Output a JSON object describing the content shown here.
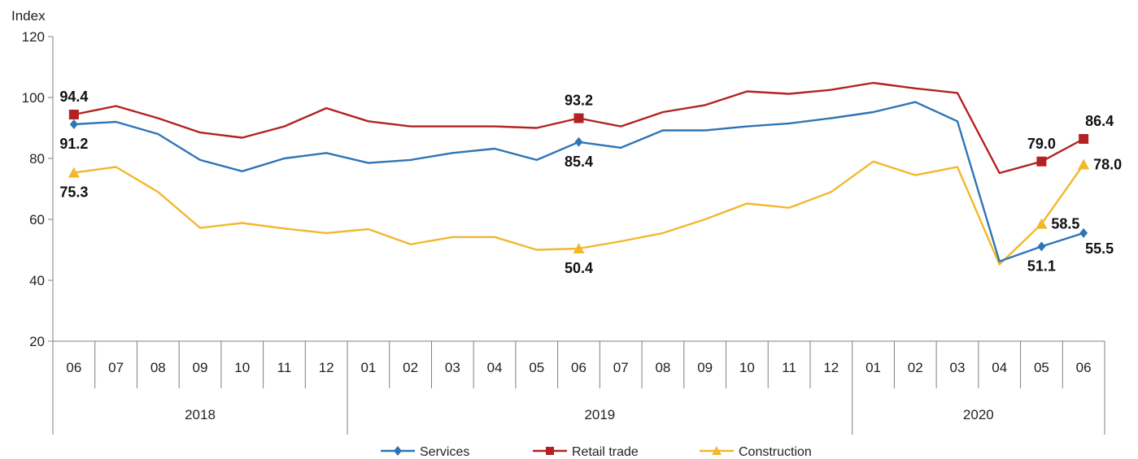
{
  "chart_data": {
    "type": "line",
    "ylabel": "Index",
    "ylim": [
      20,
      120
    ],
    "yticks": [
      "20",
      "40",
      "60",
      "80",
      "100",
      "120"
    ],
    "grid": false,
    "legend_position": "bottom",
    "categories": [
      "06",
      "07",
      "08",
      "09",
      "10",
      "11",
      "12",
      "01",
      "02",
      "03",
      "04",
      "05",
      "06",
      "07",
      "08",
      "09",
      "10",
      "11",
      "12",
      "01",
      "02",
      "03",
      "04",
      "05",
      "06"
    ],
    "year_groups": [
      {
        "label": "2018",
        "start": 0,
        "end": 6
      },
      {
        "label": "2019",
        "start": 7,
        "end": 18
      },
      {
        "label": "2020",
        "start": 19,
        "end": 24
      }
    ],
    "series": [
      {
        "name": "Services",
        "color": "#2E75B6",
        "marker": "diamond",
        "values": [
          91.2,
          92,
          88,
          79.5,
          75.8,
          80,
          81.8,
          78.5,
          79.5,
          81.8,
          83.2,
          79.5,
          85.4,
          83.5,
          89.2,
          89.2,
          90.5,
          91.5,
          93.2,
          95.2,
          98.5,
          92.2,
          46.2,
          51.1,
          55.5
        ],
        "marked_points": [
          0,
          12,
          23,
          24
        ],
        "labels": [
          {
            "index": 0,
            "text": "91.2",
            "pos": "below"
          },
          {
            "index": 12,
            "text": "85.4",
            "pos": "below"
          },
          {
            "index": 23,
            "text": "51.1",
            "pos": "below"
          },
          {
            "index": 24,
            "text": "55.5",
            "pos": "below-right"
          }
        ]
      },
      {
        "name": "Retail trade",
        "color": "#B22222",
        "marker": "square",
        "values": [
          94.4,
          97.2,
          93.2,
          88.5,
          86.8,
          90.5,
          96.5,
          92.2,
          90.5,
          90.5,
          90.5,
          90,
          93.2,
          90.5,
          95.2,
          97.5,
          102,
          101.2,
          102.5,
          104.8,
          103,
          101.5,
          75.2,
          79.0,
          86.4
        ],
        "marked_points": [
          0,
          12,
          23,
          24
        ],
        "labels": [
          {
            "index": 0,
            "text": "94.4",
            "pos": "above"
          },
          {
            "index": 12,
            "text": "93.2",
            "pos": "above"
          },
          {
            "index": 23,
            "text": "79.0",
            "pos": "above"
          },
          {
            "index": 24,
            "text": "86.4",
            "pos": "above-right"
          }
        ]
      },
      {
        "name": "Construction",
        "color": "#F2B82C",
        "marker": "triangle",
        "values": [
          75.3,
          77.2,
          69,
          57.2,
          58.8,
          57,
          55.5,
          56.8,
          51.8,
          54.2,
          54.2,
          50,
          50.4,
          52.8,
          55.5,
          60,
          65.2,
          63.8,
          69,
          79,
          74.5,
          77.2,
          45.2,
          58.5,
          78.0
        ],
        "marked_points": [
          0,
          12,
          23,
          24
        ],
        "labels": [
          {
            "index": 0,
            "text": "75.3",
            "pos": "below"
          },
          {
            "index": 12,
            "text": "50.4",
            "pos": "below"
          },
          {
            "index": 23,
            "text": "58.5",
            "pos": "right"
          },
          {
            "index": 24,
            "text": "78.0",
            "pos": "right"
          }
        ]
      }
    ]
  }
}
